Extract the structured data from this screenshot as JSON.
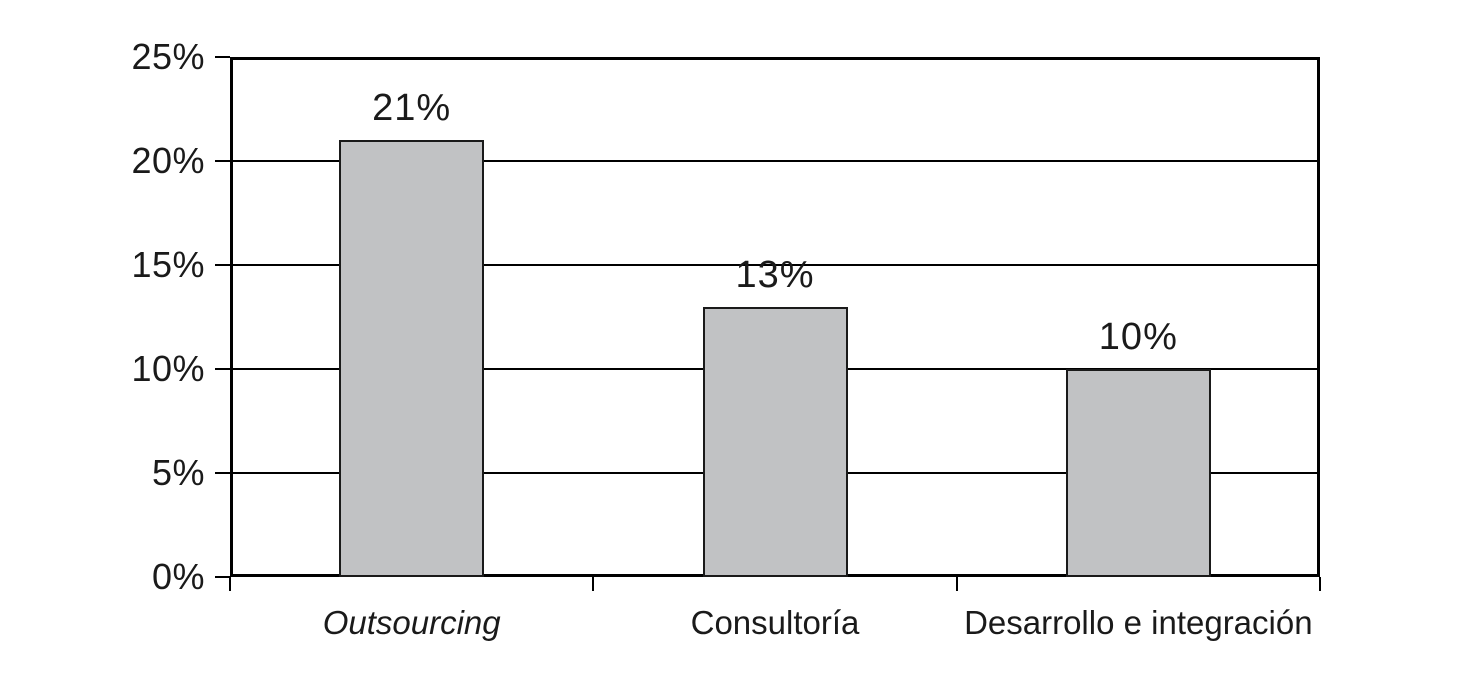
{
  "chart_data": {
    "type": "bar",
    "categories": [
      {
        "label": "Outsourcing",
        "italic": true
      },
      {
        "label": "Consultoría",
        "italic": false
      },
      {
        "label": "Desarrollo e integración",
        "italic": false
      }
    ],
    "values": [
      21,
      13,
      10
    ],
    "data_labels": [
      "21%",
      "13%",
      "10%"
    ],
    "y_ticks": [
      {
        "value": 0,
        "label": "0%"
      },
      {
        "value": 5,
        "label": "5%"
      },
      {
        "value": 10,
        "label": "10%"
      },
      {
        "value": 15,
        "label": "15%"
      },
      {
        "value": 20,
        "label": "20%"
      },
      {
        "value": 25,
        "label": "25%"
      }
    ],
    "ylim": [
      0,
      25
    ],
    "grid": true,
    "legend": false,
    "colors": {
      "bar_fill": "#C1C2C4",
      "bar_border": "#1A1A1A",
      "axis": "#000000",
      "gridline": "#000000",
      "text": "#1A1A1A",
      "background": "#FFFFFF"
    }
  }
}
